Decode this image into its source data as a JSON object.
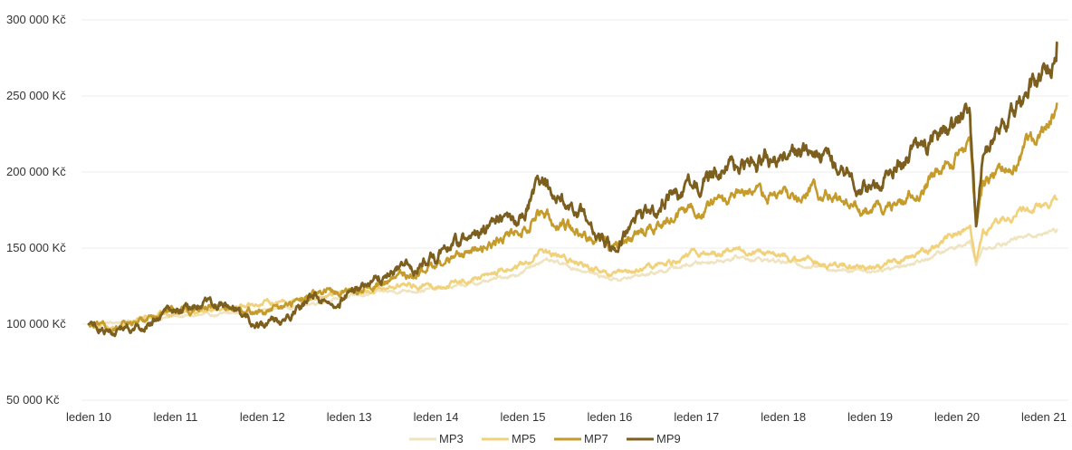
{
  "chart_data": {
    "type": "line",
    "title": "",
    "xlabel": "",
    "ylabel": "",
    "ylim": [
      50000,
      300000
    ],
    "y_ticks": [
      50000,
      100000,
      150000,
      200000,
      250000,
      300000
    ],
    "y_tick_labels": [
      "50 000 Kč",
      "100 000 Kč",
      "150 000 Kč",
      "200 000 Kč",
      "250 000 Kč",
      "300 000 Kč"
    ],
    "x_ticks": [
      "leden 10",
      "leden 11",
      "leden 12",
      "leden 13",
      "leden 14",
      "leden 15",
      "leden 16",
      "leden 17",
      "leden 18",
      "leden 19",
      "leden 20",
      "leden 21"
    ],
    "xlim": [
      2010.0,
      2021.15
    ],
    "grid": "horizontal",
    "legend": "bottom-center",
    "series": [
      {
        "name": "MP3",
        "color": "#efe3c0",
        "points": [
          [
            2010.0,
            100000
          ],
          [
            2010.3,
            101000
          ],
          [
            2010.6,
            103000
          ],
          [
            2011.0,
            105000
          ],
          [
            2011.5,
            106000
          ],
          [
            2012.0,
            109000
          ],
          [
            2012.5,
            113000
          ],
          [
            2013.0,
            118000
          ],
          [
            2013.4,
            121000
          ],
          [
            2013.6,
            122000
          ],
          [
            2014.0,
            123000
          ],
          [
            2014.5,
            127000
          ],
          [
            2015.0,
            134000
          ],
          [
            2015.2,
            142000
          ],
          [
            2015.6,
            137000
          ],
          [
            2016.0,
            130000
          ],
          [
            2016.2,
            130000
          ],
          [
            2016.5,
            134000
          ],
          [
            2017.0,
            140000
          ],
          [
            2017.5,
            144000
          ],
          [
            2018.0,
            141000
          ],
          [
            2018.5,
            137000
          ],
          [
            2019.0,
            135000
          ],
          [
            2019.5,
            140000
          ],
          [
            2020.0,
            151000
          ],
          [
            2020.15,
            155000
          ],
          [
            2020.22,
            140000
          ],
          [
            2020.3,
            150000
          ],
          [
            2020.6,
            155000
          ],
          [
            2021.0,
            160000
          ],
          [
            2021.15,
            162000
          ]
        ]
      },
      {
        "name": "MP5",
        "color": "#f1d27a",
        "points": [
          [
            2010.0,
            100000
          ],
          [
            2010.3,
            98000
          ],
          [
            2010.6,
            104000
          ],
          [
            2011.0,
            108000
          ],
          [
            2011.5,
            111000
          ],
          [
            2012.0,
            114000
          ],
          [
            2012.5,
            117000
          ],
          [
            2013.0,
            121000
          ],
          [
            2013.4,
            124000
          ],
          [
            2013.6,
            126000
          ],
          [
            2014.0,
            125000
          ],
          [
            2014.5,
            131000
          ],
          [
            2015.0,
            139000
          ],
          [
            2015.2,
            147000
          ],
          [
            2015.6,
            141000
          ],
          [
            2016.0,
            131000
          ],
          [
            2016.2,
            133000
          ],
          [
            2016.5,
            138000
          ],
          [
            2017.0,
            146000
          ],
          [
            2017.5,
            148000
          ],
          [
            2018.0,
            144000
          ],
          [
            2018.5,
            139000
          ],
          [
            2019.0,
            137000
          ],
          [
            2019.5,
            144000
          ],
          [
            2020.0,
            160000
          ],
          [
            2020.15,
            166000
          ],
          [
            2020.22,
            143000
          ],
          [
            2020.3,
            160000
          ],
          [
            2020.6,
            172000
          ],
          [
            2021.0,
            178000
          ],
          [
            2021.15,
            182000
          ]
        ]
      },
      {
        "name": "MP7",
        "color": "#c59b2b",
        "points": [
          [
            2010.0,
            100000
          ],
          [
            2010.3,
            96000
          ],
          [
            2010.6,
            103000
          ],
          [
            2011.0,
            110000
          ],
          [
            2011.5,
            113000
          ],
          [
            2012.0,
            107000
          ],
          [
            2012.3,
            112000
          ],
          [
            2012.6,
            118000
          ],
          [
            2013.0,
            123000
          ],
          [
            2013.4,
            128000
          ],
          [
            2014.0,
            138000
          ],
          [
            2014.5,
            150000
          ],
          [
            2015.0,
            162000
          ],
          [
            2015.2,
            173000
          ],
          [
            2015.6,
            163000
          ],
          [
            2016.0,
            150000
          ],
          [
            2016.2,
            153000
          ],
          [
            2016.5,
            164000
          ],
          [
            2017.0,
            176000
          ],
          [
            2017.5,
            183000
          ],
          [
            2018.0,
            185000
          ],
          [
            2018.5,
            187000
          ],
          [
            2019.0,
            171000
          ],
          [
            2019.5,
            186000
          ],
          [
            2020.0,
            210000
          ],
          [
            2020.15,
            216000
          ],
          [
            2020.22,
            162000
          ],
          [
            2020.3,
            190000
          ],
          [
            2020.6,
            205000
          ],
          [
            2021.0,
            232000
          ],
          [
            2021.15,
            245000
          ]
        ]
      },
      {
        "name": "MP9",
        "color": "#7c5f1e",
        "points": [
          [
            2010.0,
            100000
          ],
          [
            2010.3,
            95000
          ],
          [
            2010.6,
            98000
          ],
          [
            2011.0,
            110000
          ],
          [
            2011.5,
            114000
          ],
          [
            2012.0,
            98000
          ],
          [
            2012.3,
            108000
          ],
          [
            2012.6,
            117000
          ],
          [
            2013.0,
            120000
          ],
          [
            2013.4,
            132000
          ],
          [
            2014.0,
            145000
          ],
          [
            2014.5,
            160000
          ],
          [
            2015.0,
            172000
          ],
          [
            2015.2,
            190000
          ],
          [
            2015.6,
            178000
          ],
          [
            2016.0,
            150000
          ],
          [
            2016.2,
            163000
          ],
          [
            2016.5,
            175000
          ],
          [
            2017.0,
            195000
          ],
          [
            2017.5,
            205000
          ],
          [
            2018.0,
            212000
          ],
          [
            2018.5,
            210000
          ],
          [
            2019.0,
            187000
          ],
          [
            2019.5,
            212000
          ],
          [
            2020.0,
            232000
          ],
          [
            2020.15,
            237000
          ],
          [
            2020.22,
            160000
          ],
          [
            2020.3,
            210000
          ],
          [
            2020.6,
            235000
          ],
          [
            2021.0,
            265000
          ],
          [
            2021.15,
            285000
          ]
        ]
      }
    ]
  }
}
